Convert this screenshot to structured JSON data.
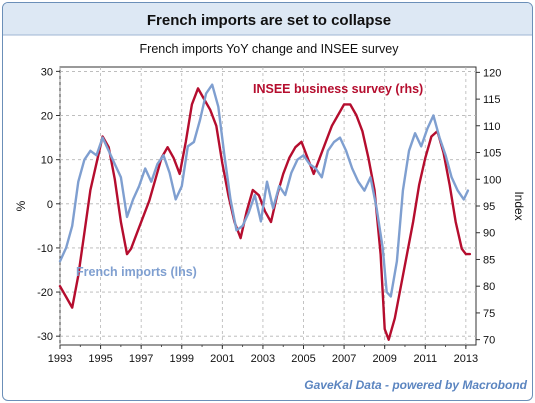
{
  "chart_data": {
    "type": "line",
    "title": "French imports are set to collapse",
    "subtitle": "French imports YoY change and INSEE survey",
    "ylabel_left": "%",
    "ylabel_right": "Index",
    "source": "GaveKal Data - powered by Macrobond",
    "x_ticks": [
      "1993",
      "1995",
      "1997",
      "1999",
      "2001",
      "2003",
      "2005",
      "2007",
      "2009",
      "2011",
      "2013"
    ],
    "xlim": [
      1993.0,
      2013.5
    ],
    "ylim_left": [
      -32,
      31
    ],
    "yticks_left": [
      -30,
      -20,
      -10,
      0,
      10,
      20,
      30
    ],
    "ylim_right": [
      69,
      121
    ],
    "yticks_right": [
      70,
      75,
      80,
      85,
      90,
      95,
      100,
      105,
      110,
      115,
      120
    ],
    "grid": true,
    "series": [
      {
        "name": "INSEE business survey (rhs)",
        "axis": "right",
        "color": "#b50d2e",
        "x": [
          1993.0,
          1993.3,
          1993.6,
          1993.9,
          1994.2,
          1994.5,
          1994.8,
          1995.1,
          1995.4,
          1995.7,
          1996.0,
          1996.3,
          1996.5,
          1996.8,
          1997.1,
          1997.4,
          1997.7,
          1998.0,
          1998.3,
          1998.6,
          1998.9,
          1999.2,
          1999.5,
          1999.8,
          2000.1,
          2000.4,
          2000.7,
          2001.0,
          2001.3,
          2001.6,
          2001.9,
          2002.2,
          2002.5,
          2002.8,
          2003.1,
          2003.4,
          2003.7,
          2004.0,
          2004.3,
          2004.6,
          2004.9,
          2005.2,
          2005.5,
          2005.8,
          2006.1,
          2006.4,
          2006.7,
          2007.0,
          2007.3,
          2007.6,
          2007.9,
          2008.2,
          2008.5,
          2008.8,
          2009.0,
          2009.2,
          2009.5,
          2009.8,
          2010.1,
          2010.4,
          2010.7,
          2011.0,
          2011.3,
          2011.6,
          2011.9,
          2012.2,
          2012.5,
          2012.8,
          2013.0,
          2013.2
        ],
        "values": [
          80,
          78,
          76,
          82,
          90,
          98,
          103,
          108,
          106,
          100,
          92,
          86,
          87,
          90,
          93,
          96,
          100,
          104,
          106,
          104,
          101,
          107,
          114,
          117,
          115,
          113,
          110,
          103,
          97,
          92,
          89,
          94,
          98,
          97,
          94,
          92,
          97,
          101,
          104,
          106,
          107,
          104,
          101,
          104,
          107,
          110,
          112,
          114,
          114,
          112,
          109,
          104,
          98,
          86,
          72,
          70,
          74,
          80,
          86,
          92,
          99,
          104,
          108,
          109,
          105,
          99,
          92,
          87,
          86,
          86
        ]
      },
      {
        "name": "French imports (lhs)",
        "axis": "left",
        "color": "#7f9fd0",
        "x": [
          1993.0,
          1993.3,
          1993.6,
          1993.9,
          1994.2,
          1994.5,
          1994.8,
          1995.1,
          1995.4,
          1995.7,
          1996.0,
          1996.3,
          1996.6,
          1996.9,
          1997.2,
          1997.5,
          1997.8,
          1998.1,
          1998.4,
          1998.7,
          1999.0,
          1999.3,
          1999.6,
          1999.9,
          2000.2,
          2000.5,
          2000.8,
          2001.1,
          2001.4,
          2001.7,
          2002.0,
          2002.3,
          2002.6,
          2002.9,
          2003.2,
          2003.5,
          2003.8,
          2004.1,
          2004.4,
          2004.7,
          2005.0,
          2005.3,
          2005.6,
          2005.9,
          2006.2,
          2006.5,
          2006.8,
          2007.1,
          2007.4,
          2007.7,
          2008.0,
          2008.3,
          2008.6,
          2008.9,
          2009.1,
          2009.3,
          2009.6,
          2009.9,
          2010.2,
          2010.5,
          2010.8,
          2011.1,
          2011.4,
          2011.7,
          2012.0,
          2012.3,
          2012.6,
          2012.9,
          2013.1
        ],
        "values": [
          -13,
          -10,
          -5,
          5,
          10,
          12,
          11,
          15,
          12,
          9,
          6,
          -3,
          1,
          4,
          8,
          5,
          9,
          11,
          7,
          1,
          4,
          13,
          14,
          19,
          25,
          27,
          22,
          11,
          1,
          -6,
          -5,
          -2,
          2,
          -4,
          5,
          -1,
          4,
          2,
          7,
          10,
          11,
          9,
          8,
          6,
          12,
          14,
          15,
          12,
          8,
          5,
          3,
          6,
          -1,
          -10,
          -20,
          -21,
          -13,
          3,
          12,
          16,
          13,
          17,
          20,
          15,
          11,
          6,
          3,
          1,
          3
        ]
      }
    ]
  }
}
